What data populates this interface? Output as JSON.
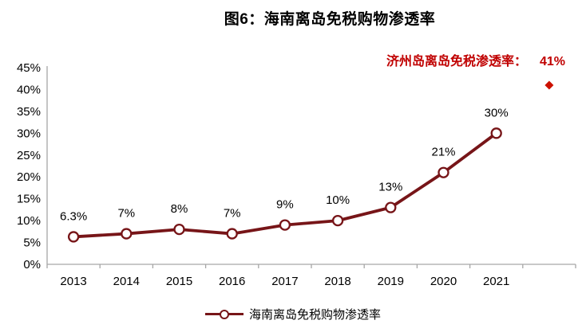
{
  "chart_data": {
    "type": "line",
    "title": "图6：海南离岛免税购物渗透率",
    "x": [
      "2013",
      "2014",
      "2015",
      "2016",
      "2017",
      "2018",
      "2019",
      "2020",
      "2021"
    ],
    "series": [
      {
        "name": "海南离岛免税购物渗透率",
        "values": [
          6.3,
          7,
          8,
          7,
          9,
          10,
          13,
          21,
          30
        ],
        "point_labels": [
          "6.3%",
          "7%",
          "8%",
          "7%",
          "9%",
          "10%",
          "13%",
          "21%",
          "30%"
        ],
        "color": "#771518",
        "marker": "open-circle"
      }
    ],
    "annotation": {
      "label": "济州岛离岛免税渗透率：",
      "value": "41%",
      "y_value": 41,
      "x_slot": 9,
      "color": "#c00000",
      "marker": "diamond",
      "marker_color": "#cc1100"
    },
    "ylim": [
      0,
      45
    ],
    "ytick_labels": [
      "0%",
      "5%",
      "10%",
      "15%",
      "20%",
      "25%",
      "30%",
      "35%",
      "40%",
      "45%"
    ],
    "xlabel": "",
    "ylabel": "",
    "grid": false,
    "legend_position": "bottom",
    "axis_color": "#a6a6a6",
    "label_color": "#000000",
    "background": "#ffffff"
  }
}
